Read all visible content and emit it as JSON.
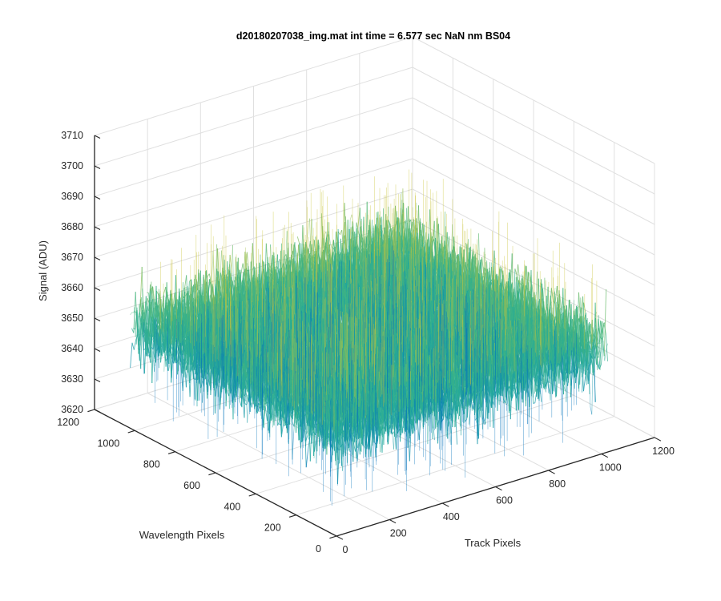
{
  "chart_data": {
    "type": "surface",
    "title": "d20180207038_img.mat int time = 6.577 sec  NaN nm BS04",
    "xlabel": "Track Pixels",
    "ylabel": "Wavelength Pixels",
    "zlabel": "Signal (ADU)",
    "xlim": [
      0,
      1200
    ],
    "ylim": [
      0,
      1200
    ],
    "zlim": [
      3620,
      3710
    ],
    "x_ticks": [
      "0",
      "200",
      "400",
      "600",
      "800",
      "1000",
      "1200"
    ],
    "y_ticks": [
      "0",
      "200",
      "400",
      "600",
      "800",
      "1000",
      "1200"
    ],
    "z_ticks": [
      "3620",
      "3630",
      "3640",
      "3650",
      "3660",
      "3670",
      "3680",
      "3690",
      "3700",
      "3710"
    ],
    "grid": true,
    "colormap": "parula",
    "colors": {
      "low": "#0072bd",
      "mid": "#1fa8a0",
      "midhigh": "#4cb87a",
      "high": "#c9c43a",
      "axis": "#262626",
      "grid": "#e0e0e0"
    },
    "surface": {
      "x_range": [
        1,
        1024
      ],
      "y_range": [
        1,
        1024
      ],
      "z_mean": 3654,
      "z_std": 6,
      "z_min_approx": 3626,
      "z_max_approx": 3688
    }
  }
}
